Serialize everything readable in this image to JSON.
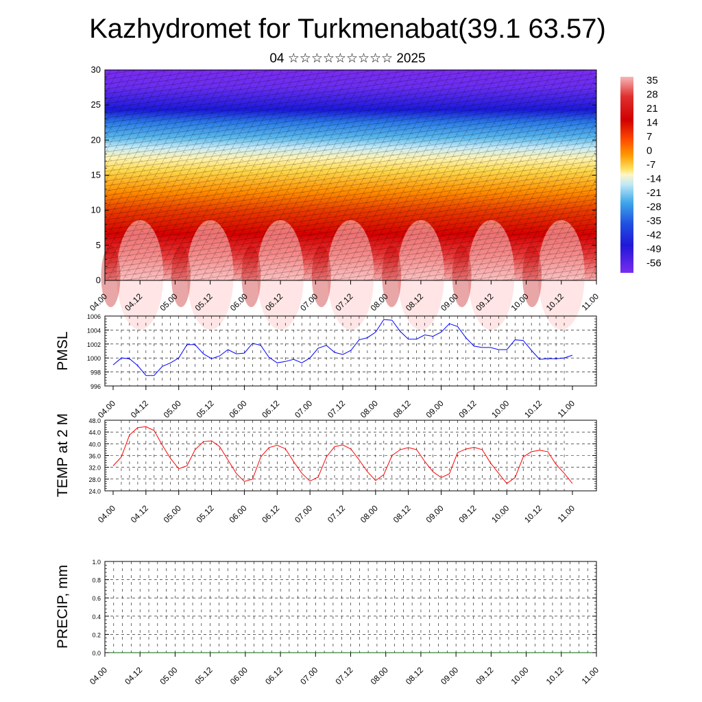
{
  "title": "Kazhydromet for Turkmenabat(39.1 63.57)",
  "subtitle": "04 ☆☆☆☆☆☆☆☆☆ 2025",
  "time_ticks": [
    "04.00",
    "04.12",
    "05.00",
    "05.12",
    "06.00",
    "06.12",
    "07.00",
    "07.12",
    "08.00",
    "08.12",
    "09.00",
    "09.12",
    "10.00",
    "10.12",
    "11.00"
  ],
  "chart_data": [
    {
      "type": "heatmap",
      "description_panel": "cross-section",
      "ylim": [
        0,
        30
      ],
      "yticks": [
        "0",
        "5",
        "10",
        "15",
        "20",
        "25",
        "30"
      ],
      "colorbar_labels": [
        "35",
        "28",
        "21",
        "14",
        "7",
        "0",
        "-7",
        "-14",
        "-21",
        "-28",
        "-35",
        "-42",
        "-49",
        "-56"
      ],
      "colors": {
        "warm_max": "#f7b6b6",
        "red": "#d40000",
        "orange": "#ff8c00",
        "yellow": "#ffe97a",
        "white": "#fff8d0",
        "light_blue": "#9fd8f0",
        "blue": "#2f5be0",
        "violet": "#7a2cf0"
      }
    },
    {
      "type": "line",
      "ylabel": "PMSL",
      "ylim": [
        996,
        1006
      ],
      "yticks": [
        "996",
        "998",
        "1000",
        "1002",
        "1004",
        "1006"
      ],
      "color": "#0000ff",
      "x_hours": [
        0,
        3,
        6,
        9,
        12,
        15,
        18,
        21,
        24,
        27,
        30,
        33,
        36,
        39,
        42,
        45,
        48,
        51,
        54,
        57,
        60,
        63,
        66,
        69,
        72,
        75,
        78,
        81,
        84,
        87,
        90,
        93,
        96,
        99,
        102,
        105,
        108,
        111,
        114,
        117,
        120,
        123,
        126,
        129,
        132,
        135,
        138,
        141,
        144,
        147,
        150,
        153,
        156,
        159,
        162,
        165,
        168
      ],
      "values": [
        999.0,
        1000.0,
        999.9,
        998.9,
        997.5,
        997.5,
        998.8,
        999.3,
        1000.0,
        1001.9,
        1001.9,
        1000.6,
        999.9,
        1000.3,
        1001.2,
        1000.6,
        1000.7,
        1002.1,
        1001.8,
        1000.1,
        999.3,
        999.5,
        999.8,
        999.3,
        1000.0,
        1001.4,
        1001.8,
        1000.8,
        1000.5,
        1001.1,
        1002.6,
        1002.9,
        1003.7,
        1005.5,
        1005.4,
        1003.8,
        1002.7,
        1002.7,
        1003.3,
        1003.1,
        1003.7,
        1004.9,
        1004.5,
        1002.9,
        1001.7,
        1001.5,
        1001.5,
        1001.2,
        1001.2,
        1002.6,
        1002.5,
        1001.1,
        999.8,
        999.9,
        999.9,
        1000.0,
        1000.4
      ]
    },
    {
      "type": "line",
      "ylabel": "TEMP at 2 M",
      "ylim": [
        24,
        48
      ],
      "yticks": [
        "24.0",
        "28.0",
        "32.0",
        "36.0",
        "40.0",
        "44.0",
        "48.0"
      ],
      "color": "#ff0000",
      "x_hours": [
        0,
        3,
        6,
        9,
        12,
        15,
        18,
        21,
        24,
        27,
        30,
        33,
        36,
        39,
        42,
        45,
        48,
        51,
        54,
        57,
        60,
        63,
        66,
        69,
        72,
        75,
        78,
        81,
        84,
        87,
        90,
        93,
        96,
        99,
        102,
        105,
        108,
        111,
        114,
        117,
        120,
        123,
        126,
        129,
        132,
        135,
        138,
        141,
        144,
        147,
        150,
        153,
        156,
        159,
        162,
        165,
        168
      ],
      "values": [
        32.5,
        35.5,
        43.0,
        45.5,
        45.8,
        44.5,
        39.5,
        35.0,
        31.5,
        32.5,
        38.0,
        40.7,
        41.0,
        39.0,
        34.5,
        30.0,
        27.2,
        28.0,
        35.5,
        38.7,
        39.5,
        38.3,
        34.0,
        30.0,
        27.3,
        28.7,
        35.5,
        39.0,
        39.6,
        38.2,
        34.5,
        30.5,
        27.5,
        29.5,
        36.0,
        38.0,
        38.7,
        38.0,
        34.0,
        30.5,
        28.5,
        29.8,
        37.0,
        38.2,
        38.8,
        38.0,
        33.5,
        30.0,
        26.5,
        28.5,
        35.5,
        37.3,
        37.8,
        37.3,
        33.0,
        30.0,
        26.5
      ]
    },
    {
      "type": "line",
      "ylabel": "PRECIP, mm",
      "ylim": [
        0,
        1
      ],
      "yticks": [
        "0.0",
        "0.2",
        "0.4",
        "0.6",
        "0.8",
        "1.0"
      ],
      "color": "#006400",
      "x_hours": [
        0,
        168
      ],
      "values": [
        0,
        0
      ]
    }
  ]
}
